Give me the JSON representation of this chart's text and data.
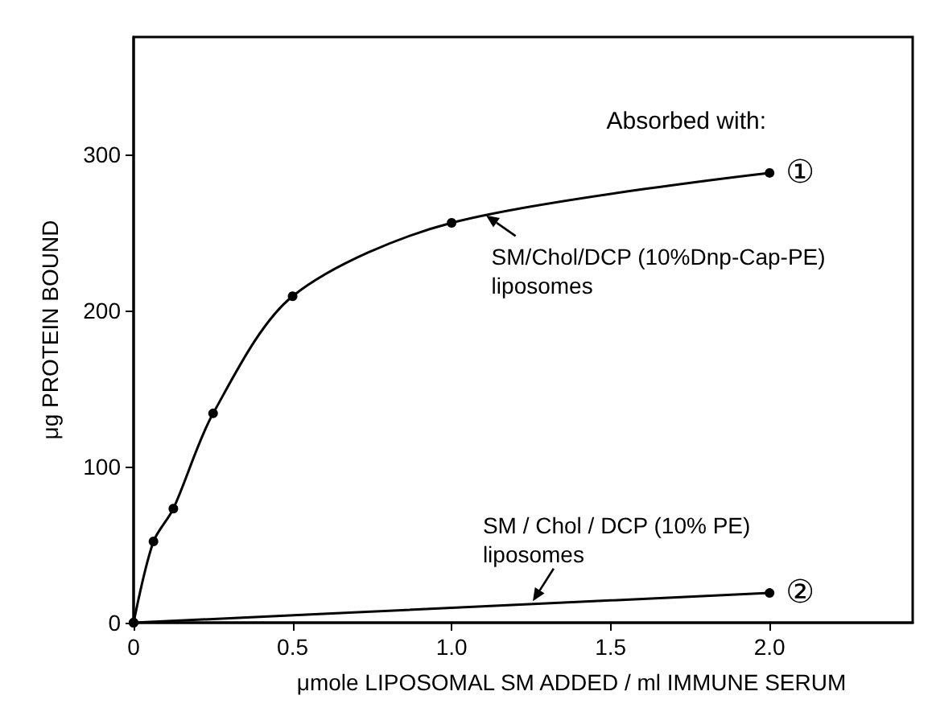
{
  "chart_data": {
    "type": "line",
    "xlabel": "μmole LIPOSOMAL SM ADDED / ml IMMUNE SERUM",
    "ylabel": "μg PROTEIN BOUND",
    "xlim": [
      0,
      2.45
    ],
    "ylim": [
      0,
      375
    ],
    "xticks": [
      0,
      {
        "value": 0.5,
        "label": "0.5"
      },
      {
        "value": 1,
        "label": "1.0"
      },
      {
        "value": 1.5,
        "label": "1.5"
      },
      {
        "value": 2,
        "label": "2.0"
      }
    ],
    "yticks": [
      0,
      100,
      200,
      300
    ],
    "series": [
      {
        "name": "①",
        "color": "#000000",
        "x": [
          0,
          0.0625,
          0.125,
          0.25,
          0.5,
          1.0,
          2.0
        ],
        "values": [
          0,
          52,
          73,
          134,
          209,
          256,
          288
        ]
      },
      {
        "name": "②",
        "color": "#000000",
        "x": [
          0,
          2.0
        ],
        "values": [
          0,
          19
        ]
      }
    ],
    "marker": "circle",
    "line_style": "solid",
    "grid": false,
    "legend": false,
    "annotations": [
      "Absorbed with:",
      {
        "text": "SM/Chol/DCP (10%Dnp-Cap-PE)\nliposomes",
        "x": 1.1,
        "y": 262
      },
      {
        "text": "SM / Chol / DCP (10% PE)\nliposomes",
        "x": 1.25,
        "y": 12
      }
    ]
  }
}
